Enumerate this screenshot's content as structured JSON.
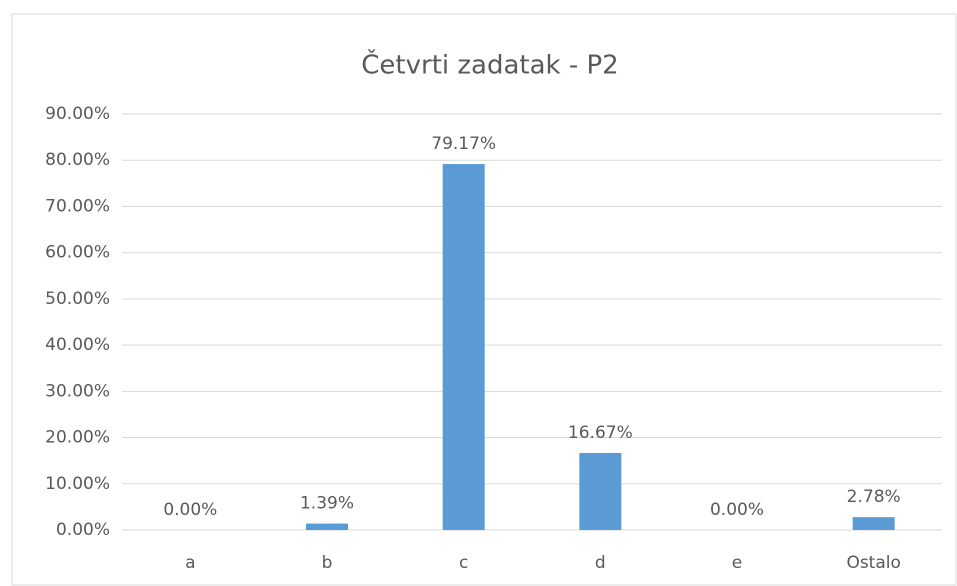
{
  "chart_data": {
    "type": "bar",
    "title": "Četvrti zadatak - P2",
    "categories": [
      "a",
      "b",
      "c",
      "d",
      "e",
      "Ostalo"
    ],
    "values": [
      0,
      1.39,
      79.17,
      16.67,
      0,
      2.78
    ],
    "value_labels": [
      "0.00%",
      "1.39%",
      "79.17%",
      "16.67%",
      "0.00%",
      "2.78%"
    ],
    "color": "#5b9bd5",
    "ylim": [
      0,
      90
    ],
    "yticks": [
      {
        "value": 0,
        "label": "0.00%"
      },
      {
        "value": 10,
        "label": "10.00%"
      },
      {
        "value": 20,
        "label": "20.00%"
      },
      {
        "value": 30,
        "label": "30.00%"
      },
      {
        "value": 40,
        "label": "40.00%"
      },
      {
        "value": 50,
        "label": "50.00%"
      },
      {
        "value": 60,
        "label": "60.00%"
      },
      {
        "value": 70,
        "label": "70.00%"
      },
      {
        "value": 80,
        "label": "80.00%"
      },
      {
        "value": 90,
        "label": "90.00%"
      }
    ],
    "grid": true
  }
}
